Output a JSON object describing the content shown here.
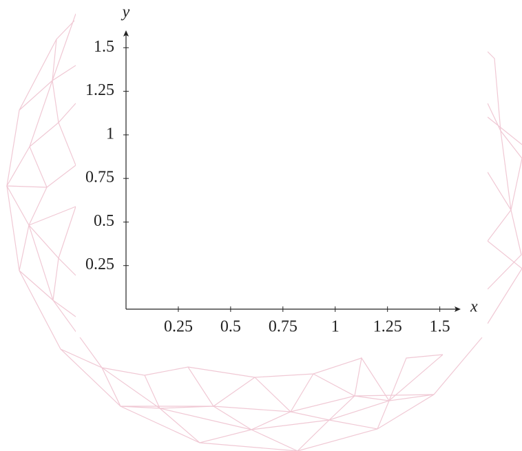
{
  "chart_data": {
    "type": "line",
    "xlabel": "x",
    "ylabel": "y",
    "xlim": [
      0,
      1.6
    ],
    "ylim": [
      0,
      1.6
    ],
    "xticks": [
      0.25,
      0.5,
      0.75,
      1,
      1.25,
      1.5
    ],
    "yticks": [
      0.25,
      0.5,
      0.75,
      1,
      1.25,
      1.5
    ],
    "grid": false
  }
}
